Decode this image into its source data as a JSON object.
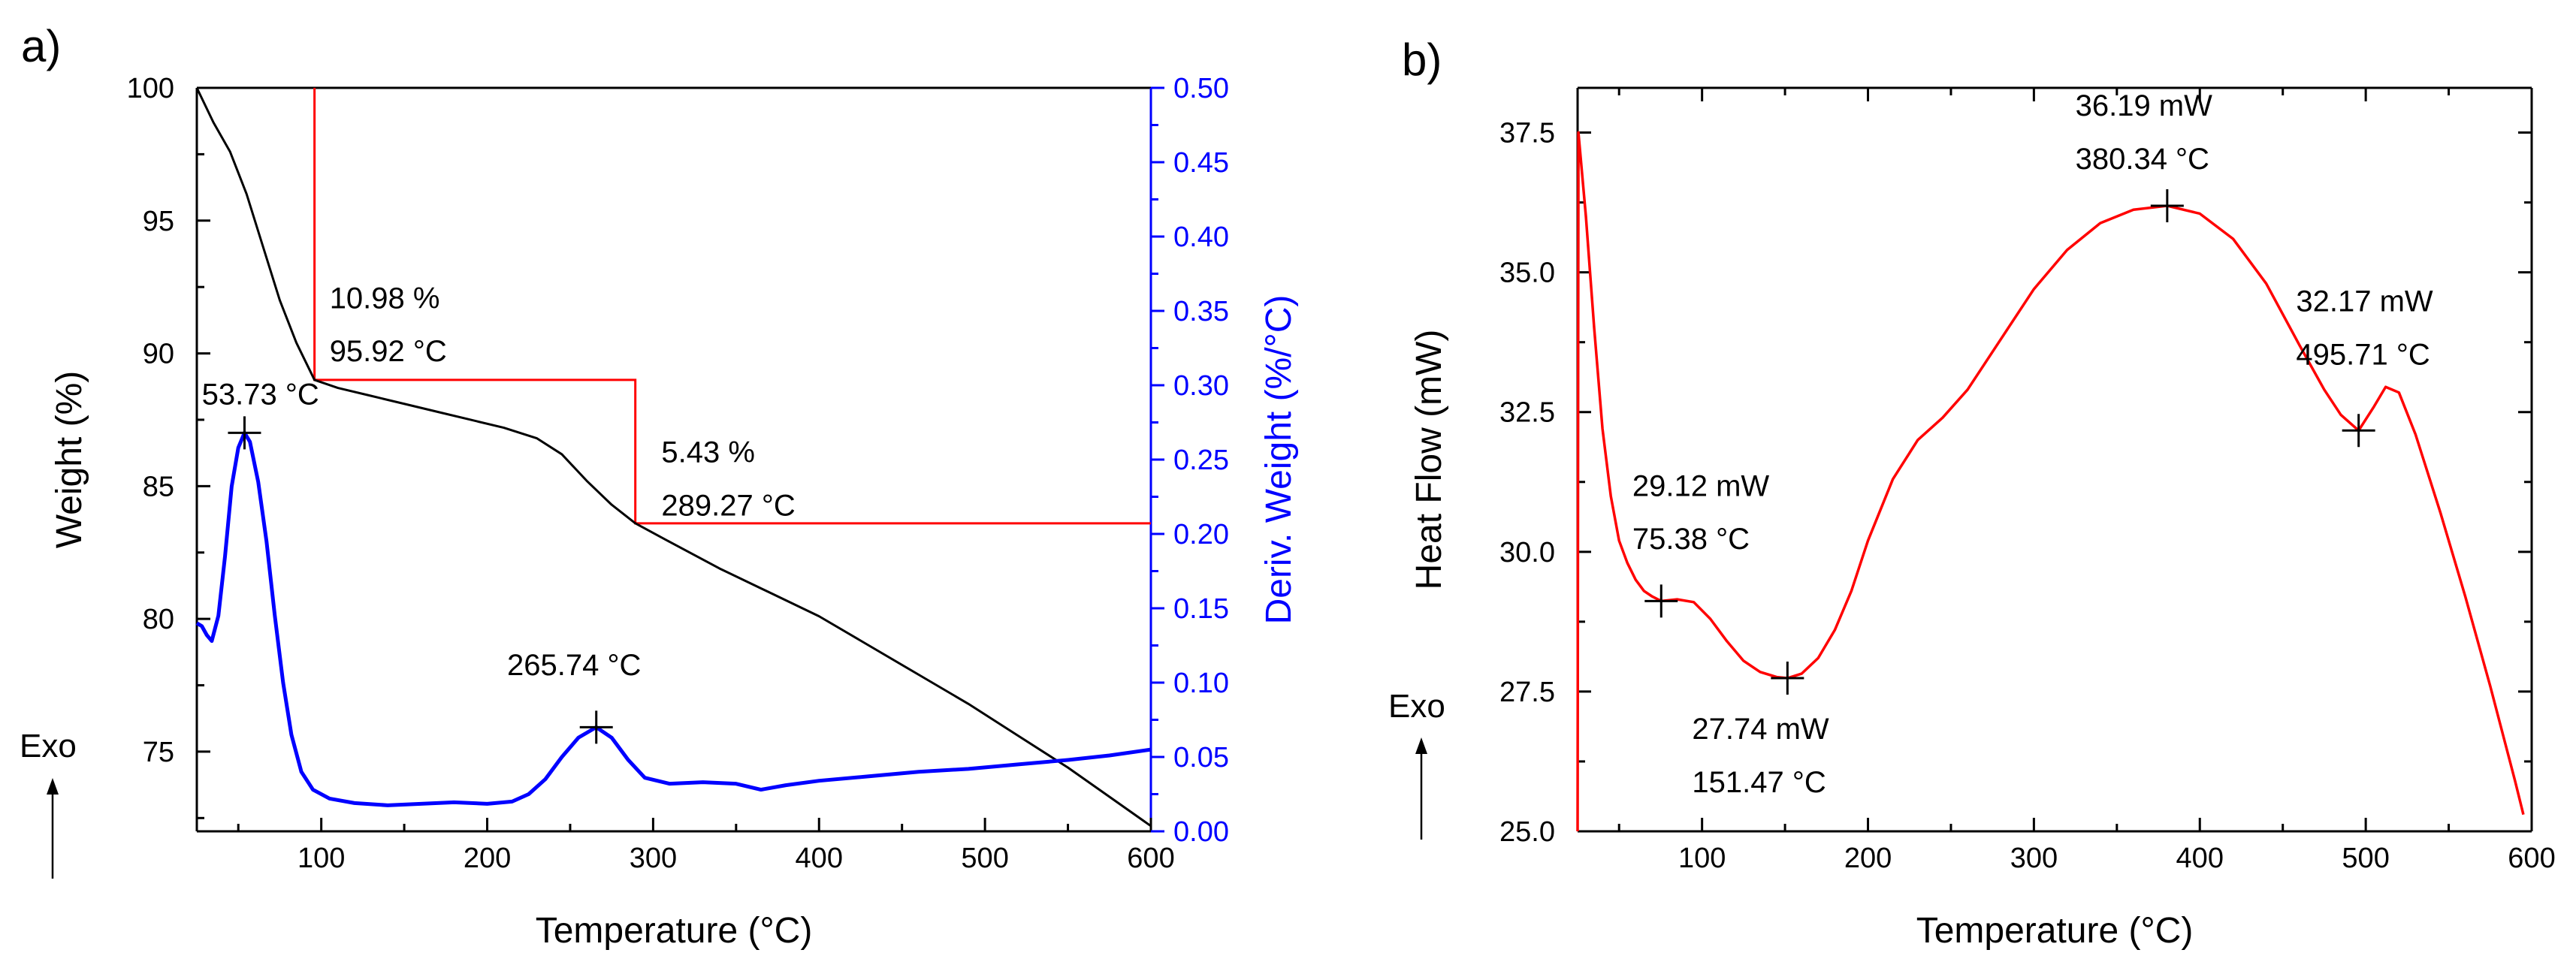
{
  "chart_data": [
    {
      "panel_label": "a)",
      "type": "line",
      "xlabel": "Temperature (°C)",
      "ylabel": "Weight (%)",
      "y2label": "Deriv. Weight (%/°C)",
      "xlim": [
        25,
        600
      ],
      "ylim": [
        72,
        100
      ],
      "y2lim": [
        0,
        0.5
      ],
      "x_ticks": [
        "100",
        "200",
        "300",
        "400",
        "500",
        "600"
      ],
      "y_ticks": [
        "75",
        "80",
        "85",
        "90",
        "95",
        "100"
      ],
      "y2_ticks": [
        "0.00",
        "0.05",
        "0.10",
        "0.15",
        "0.20",
        "0.25",
        "0.30",
        "0.35",
        "0.40",
        "0.45",
        "0.50"
      ],
      "side_label": "Exo",
      "colors": {
        "weight": "#000000",
        "deriv": "#0000ff",
        "step": "#ff0000"
      },
      "series": [
        {
          "name": "Weight",
          "axis": "left",
          "points": [
            [
              25,
              100
            ],
            [
              35,
              98.7
            ],
            [
              45,
              97.6
            ],
            [
              55,
              96.0
            ],
            [
              65,
              94.0
            ],
            [
              75,
              92.0
            ],
            [
              85,
              90.4
            ],
            [
              95.92,
              89.0
            ],
            [
              110,
              88.7
            ],
            [
              130,
              88.4
            ],
            [
              150,
              88.1
            ],
            [
              170,
              87.8
            ],
            [
              190,
              87.5
            ],
            [
              210,
              87.2
            ],
            [
              230,
              86.8
            ],
            [
              245,
              86.2
            ],
            [
              260,
              85.2
            ],
            [
              275,
              84.3
            ],
            [
              289.27,
              83.6
            ],
            [
              310,
              82.9
            ],
            [
              340,
              81.9
            ],
            [
              370,
              81.0
            ],
            [
              400,
              80.1
            ],
            [
              430,
              79.0
            ],
            [
              460,
              77.9
            ],
            [
              490,
              76.8
            ],
            [
              520,
              75.6
            ],
            [
              550,
              74.4
            ],
            [
              575,
              73.3
            ],
            [
              600,
              72.2
            ]
          ]
        },
        {
          "name": "Deriv. Weight",
          "axis": "right",
          "points": [
            [
              25,
              0.14
            ],
            [
              28,
              0.138
            ],
            [
              31,
              0.132
            ],
            [
              34,
              0.128
            ],
            [
              38,
              0.145
            ],
            [
              42,
              0.185
            ],
            [
              46,
              0.232
            ],
            [
              50,
              0.258
            ],
            [
              53.73,
              0.268
            ],
            [
              57,
              0.262
            ],
            [
              62,
              0.235
            ],
            [
              67,
              0.195
            ],
            [
              72,
              0.145
            ],
            [
              77,
              0.1
            ],
            [
              82,
              0.065
            ],
            [
              88,
              0.04
            ],
            [
              95,
              0.028
            ],
            [
              105,
              0.022
            ],
            [
              120,
              0.019
            ],
            [
              140,
              0.0175
            ],
            [
              160,
              0.0185
            ],
            [
              180,
              0.0195
            ],
            [
              200,
              0.0185
            ],
            [
              215,
              0.02
            ],
            [
              225,
              0.025
            ],
            [
              235,
              0.035
            ],
            [
              245,
              0.05
            ],
            [
              255,
              0.063
            ],
            [
              265.74,
              0.07
            ],
            [
              275,
              0.063
            ],
            [
              285,
              0.048
            ],
            [
              295,
              0.036
            ],
            [
              310,
              0.032
            ],
            [
              330,
              0.033
            ],
            [
              350,
              0.032
            ],
            [
              365,
              0.028
            ],
            [
              380,
              0.031
            ],
            [
              400,
              0.034
            ],
            [
              430,
              0.037
            ],
            [
              460,
              0.04
            ],
            [
              490,
              0.042
            ],
            [
              520,
              0.045
            ],
            [
              550,
              0.048
            ],
            [
              575,
              0.051
            ],
            [
              600,
              0.055
            ]
          ]
        }
      ],
      "step_lines": {
        "level1_weight": 89.0,
        "level2_weight": 83.6,
        "x1": 95.92,
        "x2": 289.27
      },
      "annotations": [
        {
          "name": "step1-percent",
          "text": "10.98 %",
          "x": 105,
          "y": 91.7,
          "axis": "left"
        },
        {
          "name": "step1-temp",
          "text": "95.92 °C",
          "x": 105,
          "y": 89.7,
          "axis": "left"
        },
        {
          "name": "step2-percent",
          "text": "5.43 %",
          "x": 305,
          "y": 85.9,
          "axis": "left"
        },
        {
          "name": "step2-temp",
          "text": "289.27 °C",
          "x": 305,
          "y": 83.9,
          "axis": "left"
        },
        {
          "name": "peak1-label",
          "text": "53.73 °C",
          "x": 28,
          "y": 0.287,
          "axis": "right"
        },
        {
          "name": "peak2-label",
          "text": "265.74 °C",
          "x": 212,
          "y": 0.105,
          "axis": "right"
        }
      ],
      "markers": [
        {
          "name": "peak1-marker",
          "x": 53.73,
          "y": 0.268,
          "axis": "right"
        },
        {
          "name": "peak2-marker",
          "x": 265.74,
          "y": 0.07,
          "axis": "right"
        }
      ]
    },
    {
      "panel_label": "b)",
      "type": "line",
      "xlabel": "Temperature (°C)",
      "ylabel": "Heat Flow (mW)",
      "xlim": [
        25,
        600
      ],
      "ylim": [
        25,
        38.3
      ],
      "x_ticks": [
        "100",
        "200",
        "300",
        "400",
        "500",
        "600"
      ],
      "y_ticks": [
        "25.0",
        "27.5",
        "30.0",
        "32.5",
        "35.0",
        "37.5"
      ],
      "side_label": "Exo",
      "colors": {
        "heat": "#ff0000"
      },
      "series": [
        {
          "name": "Heat Flow",
          "points": [
            [
              25,
              25.0
            ],
            [
              25.5,
              37.5
            ],
            [
              30,
              36.0
            ],
            [
              35,
              34.0
            ],
            [
              40,
              32.2
            ],
            [
              45,
              31.0
            ],
            [
              50,
              30.2
            ],
            [
              55,
              29.8
            ],
            [
              60,
              29.5
            ],
            [
              65,
              29.3
            ],
            [
              70,
              29.2
            ],
            [
              75.38,
              29.12
            ],
            [
              85,
              29.15
            ],
            [
              95,
              29.1
            ],
            [
              105,
              28.8
            ],
            [
              115,
              28.4
            ],
            [
              125,
              28.05
            ],
            [
              135,
              27.85
            ],
            [
              145,
              27.76
            ],
            [
              151.47,
              27.74
            ],
            [
              160,
              27.82
            ],
            [
              170,
              28.1
            ],
            [
              180,
              28.6
            ],
            [
              190,
              29.3
            ],
            [
              200,
              30.2
            ],
            [
              215,
              31.3
            ],
            [
              230,
              32.0
            ],
            [
              245,
              32.4
            ],
            [
              260,
              32.9
            ],
            [
              280,
              33.8
            ],
            [
              300,
              34.7
            ],
            [
              320,
              35.4
            ],
            [
              340,
              35.88
            ],
            [
              360,
              36.12
            ],
            [
              380.34,
              36.19
            ],
            [
              400,
              36.05
            ],
            [
              420,
              35.6
            ],
            [
              440,
              34.8
            ],
            [
              460,
              33.7
            ],
            [
              475,
              32.9
            ],
            [
              485,
              32.45
            ],
            [
              495.71,
              32.17
            ],
            [
              505,
              32.6
            ],
            [
              512,
              32.95
            ],
            [
              520,
              32.85
            ],
            [
              530,
              32.1
            ],
            [
              545,
              30.7
            ],
            [
              560,
              29.2
            ],
            [
              575,
              27.6
            ],
            [
              590,
              25.9
            ],
            [
              595,
              25.3
            ]
          ]
        }
      ],
      "annotations": [
        {
          "name": "max-mw",
          "text": "36.19 mW",
          "x": 325,
          "y": 37.8
        },
        {
          "name": "max-temp",
          "text": "380.34 °C",
          "x": 325,
          "y": 36.85
        },
        {
          "name": "shoulder-mw",
          "text": "32.17 mW",
          "x": 458,
          "y": 34.3
        },
        {
          "name": "shoulder-temp",
          "text": "495.71 °C",
          "x": 458,
          "y": 33.35
        },
        {
          "name": "point1-mw",
          "text": "29.12 mW",
          "x": 58,
          "y": 31.0
        },
        {
          "name": "point1-temp",
          "text": "75.38 °C",
          "x": 58,
          "y": 30.05
        },
        {
          "name": "min-mw",
          "text": "27.74 mW",
          "x": 94,
          "y": 26.65
        },
        {
          "name": "min-temp",
          "text": "151.47 °C",
          "x": 94,
          "y": 25.7
        }
      ],
      "markers": [
        {
          "name": "point1-marker",
          "x": 75.38,
          "y": 29.12
        },
        {
          "name": "min-marker",
          "x": 151.47,
          "y": 27.74
        },
        {
          "name": "max-marker",
          "x": 380.34,
          "y": 36.19
        },
        {
          "name": "shoulder-marker",
          "x": 495.71,
          "y": 32.17
        }
      ]
    }
  ]
}
